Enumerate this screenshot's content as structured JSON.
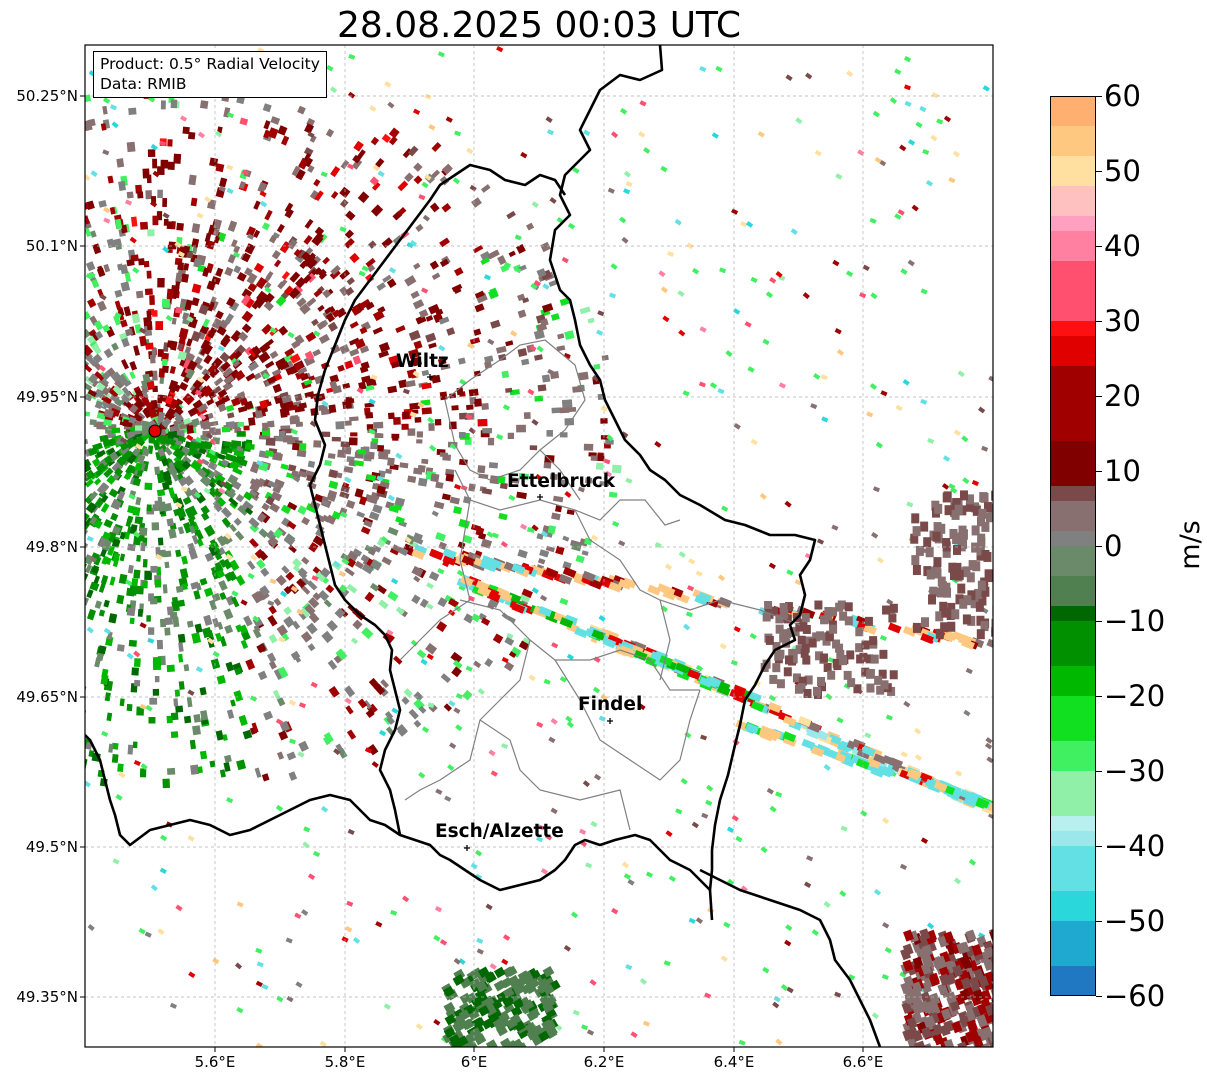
{
  "title": "28.08.2025 00:03 UTC",
  "info_box": {
    "line1": "Product: 0.5° Radial Velocity",
    "line2": "Data: RMIB"
  },
  "latitude_labels": [
    "50.25°N",
    "50.1°N",
    "49.95°N",
    "49.8°N",
    "49.65°N",
    "49.5°N",
    "49.35°N"
  ],
  "longitude_labels": [
    "5.6°E",
    "5.8°E",
    "6°E",
    "6.2°E",
    "6.4°E",
    "6.6°E"
  ],
  "cities": [
    {
      "name": "Wiltz"
    },
    {
      "name": "Ettelbruck"
    },
    {
      "name": "Findel"
    },
    {
      "name": "Esch/Alzette"
    }
  ],
  "colorbar": {
    "label": "m/s",
    "ticks": [
      "60",
      "50",
      "40",
      "30",
      "20",
      "10",
      "0",
      "−10",
      "−20",
      "−30",
      "−40",
      "−50",
      "−60"
    ],
    "min": -60,
    "max": 60
  },
  "colors": {
    "radar_site": "#e00000",
    "border": "#000000",
    "canton_lines": "#808080"
  }
}
